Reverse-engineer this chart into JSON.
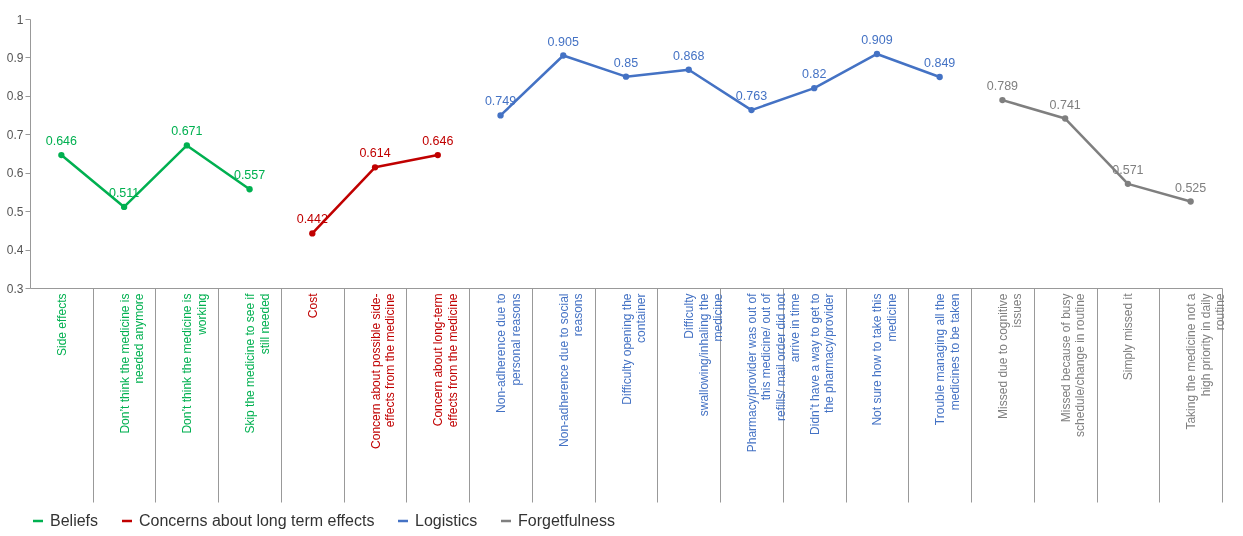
{
  "chart_data": {
    "type": "line",
    "categories": [
      "Side effects",
      "Don’t think the medicine is needed anymore",
      "Don’t think the medicine is working",
      "Skip the medicine to see if still needed",
      "Cost",
      "Concern about possible side-effects from the medicine",
      "Concern about long-term effects from the medicine",
      "Non-adherence due to personal reasons",
      "Non-adherence due to social reasons",
      "Difficulty opening the container",
      "Difficulty swallowing/inhaling the medicine",
      "Pharmacy/provider was out of this medicine/ out of refills/ mail order did not arrive in time",
      "Didn’t have a way to get to the pharmacy/provider",
      "Not sure how to take this medicine",
      "Trouble managing all the medicines to be taken",
      "Missed due to cognitive issues",
      "Missed because of busy schedule/change in routine",
      "Simply missed it",
      "Taking the medicine not a high priority in daily routine"
    ],
    "series": [
      {
        "name": "Beliefs",
        "color": "#00b050",
        "values": [
          0.646,
          0.511,
          0.671,
          0.557,
          null,
          null,
          null,
          null,
          null,
          null,
          null,
          null,
          null,
          null,
          null,
          null,
          null,
          null,
          null
        ]
      },
      {
        "name": "Concerns about long term effects",
        "color": "#c00000",
        "values": [
          null,
          null,
          null,
          null,
          0.442,
          0.614,
          0.646,
          null,
          null,
          null,
          null,
          null,
          null,
          null,
          null,
          null,
          null,
          null,
          null
        ]
      },
      {
        "name": "Logistics",
        "color": "#4472c4",
        "values": [
          null,
          null,
          null,
          null,
          null,
          null,
          null,
          0.749,
          0.905,
          0.85,
          0.868,
          0.763,
          0.82,
          0.909,
          0.849,
          null,
          null,
          null,
          null
        ]
      },
      {
        "name": "Forgetfulness",
        "color": "#7f7f7f",
        "values": [
          null,
          null,
          null,
          null,
          null,
          null,
          null,
          null,
          null,
          null,
          null,
          null,
          null,
          null,
          null,
          0.789,
          0.741,
          0.571,
          0.525
        ]
      }
    ],
    "ylim": [
      0.3,
      1
    ],
    "yticks": [
      0.3,
      0.4,
      0.5,
      0.6,
      0.7,
      0.8,
      0.9,
      1
    ],
    "grid": false,
    "legend": "bottom",
    "marker": "circle",
    "line_style": "solid",
    "data_labels": true
  }
}
